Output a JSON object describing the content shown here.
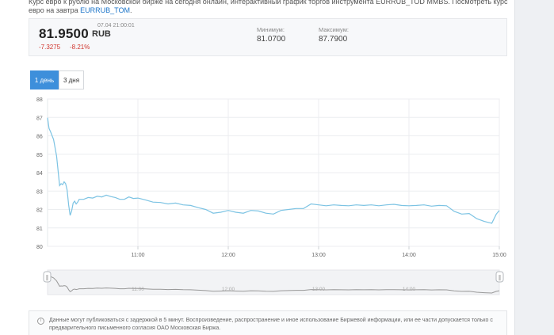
{
  "intro": {
    "text": "Курс евро к рублю на Московской бирже на сегодня онлайн, интерактивный график торгов инструмента EURRUB_TOD MMBS. Посмотреть курс евро на завтра",
    "link": "EURRUB_TOM",
    "tail": "."
  },
  "quote": {
    "price": "81.9500",
    "currency": "RUB",
    "timestamp": "07.04 21:00:01",
    "change": "-7.3275",
    "change_pct": "-8.21%",
    "min_label": "Минимум:",
    "min_value": "81.0700",
    "max_label": "Максимум:",
    "max_value": "87.7900"
  },
  "tabs": [
    {
      "label": "1 день",
      "active": true
    },
    {
      "label": "3 дня",
      "active": false
    }
  ],
  "colors": {
    "line": "#7cc3e3",
    "accent": "#3d8fdb",
    "negative": "#d0342c",
    "navigator": "#999999"
  },
  "chart_data": {
    "type": "line",
    "ylim": [
      80,
      88
    ],
    "y_ticks": [
      "80",
      "81",
      "82",
      "83",
      "84",
      "85",
      "86",
      "87",
      "88"
    ],
    "x_ticks": [
      "11:00",
      "12:00",
      "13:00",
      "14:00",
      "15:00"
    ],
    "x_start": "10:00",
    "x_end": "15:00",
    "grid": true,
    "series": [
      {
        "x": [
          "10:00",
          "10:01",
          "10:02",
          "10:04",
          "10:06",
          "10:08",
          "10:09",
          "10:10",
          "10:11",
          "10:12",
          "10:13",
          "10:14",
          "10:15",
          "10:16",
          "10:17",
          "10:18",
          "10:19",
          "10:20",
          "10:21",
          "10:24",
          "10:27",
          "10:30",
          "10:33",
          "10:36",
          "10:39",
          "10:42",
          "10:45",
          "10:48",
          "10:51",
          "10:54",
          "10:57",
          "11:00",
          "11:05",
          "11:10",
          "11:15",
          "11:20",
          "11:25",
          "11:30",
          "11:35",
          "11:40",
          "11:45",
          "11:50",
          "11:55",
          "12:00",
          "12:05",
          "12:10",
          "12:15",
          "12:20",
          "12:25",
          "12:30",
          "12:35",
          "12:40",
          "12:45",
          "12:50",
          "12:55",
          "13:00",
          "13:05",
          "13:10",
          "13:15",
          "13:20",
          "13:25",
          "13:30",
          "13:35",
          "13:40",
          "13:45",
          "13:50",
          "13:55",
          "14:00",
          "14:05",
          "14:10",
          "14:15",
          "14:20",
          "14:25",
          "14:30",
          "14:35",
          "14:40",
          "14:45",
          "14:50",
          "14:55",
          "14:58",
          "15:00"
        ],
        "values": [
          86.98,
          86.4,
          86.22,
          85.8,
          84.9,
          83.3,
          83.4,
          83.35,
          83.5,
          83.4,
          83.05,
          82.25,
          81.68,
          81.92,
          82.35,
          82.45,
          82.3,
          82.4,
          82.55,
          82.55,
          82.65,
          82.62,
          82.72,
          82.68,
          82.78,
          82.7,
          82.65,
          82.55,
          82.55,
          82.68,
          82.6,
          82.62,
          82.52,
          82.4,
          82.38,
          82.3,
          82.35,
          82.25,
          82.22,
          82.1,
          82.0,
          81.8,
          81.85,
          81.95,
          81.85,
          81.8,
          81.95,
          81.92,
          81.8,
          81.75,
          81.95,
          82.0,
          82.05,
          82.05,
          82.3,
          82.25,
          82.2,
          82.25,
          82.22,
          82.2,
          82.25,
          82.22,
          82.25,
          82.2,
          82.25,
          82.28,
          82.22,
          82.2,
          82.22,
          82.25,
          82.18,
          82.22,
          82.2,
          81.9,
          81.75,
          81.78,
          81.5,
          81.35,
          81.25,
          81.75,
          81.95
        ]
      }
    ]
  },
  "navigator": {
    "left_handle": "‖",
    "right_handle": "‖"
  },
  "note": {
    "icon": "info-icon",
    "text": "Данные могут публиковаться с задержкой в 5 минут. Воспроизведение, распространение и иное использование Биржевой информации, или ее части допускается только с предварительного письменного согласия ОАО Московская Биржа."
  }
}
